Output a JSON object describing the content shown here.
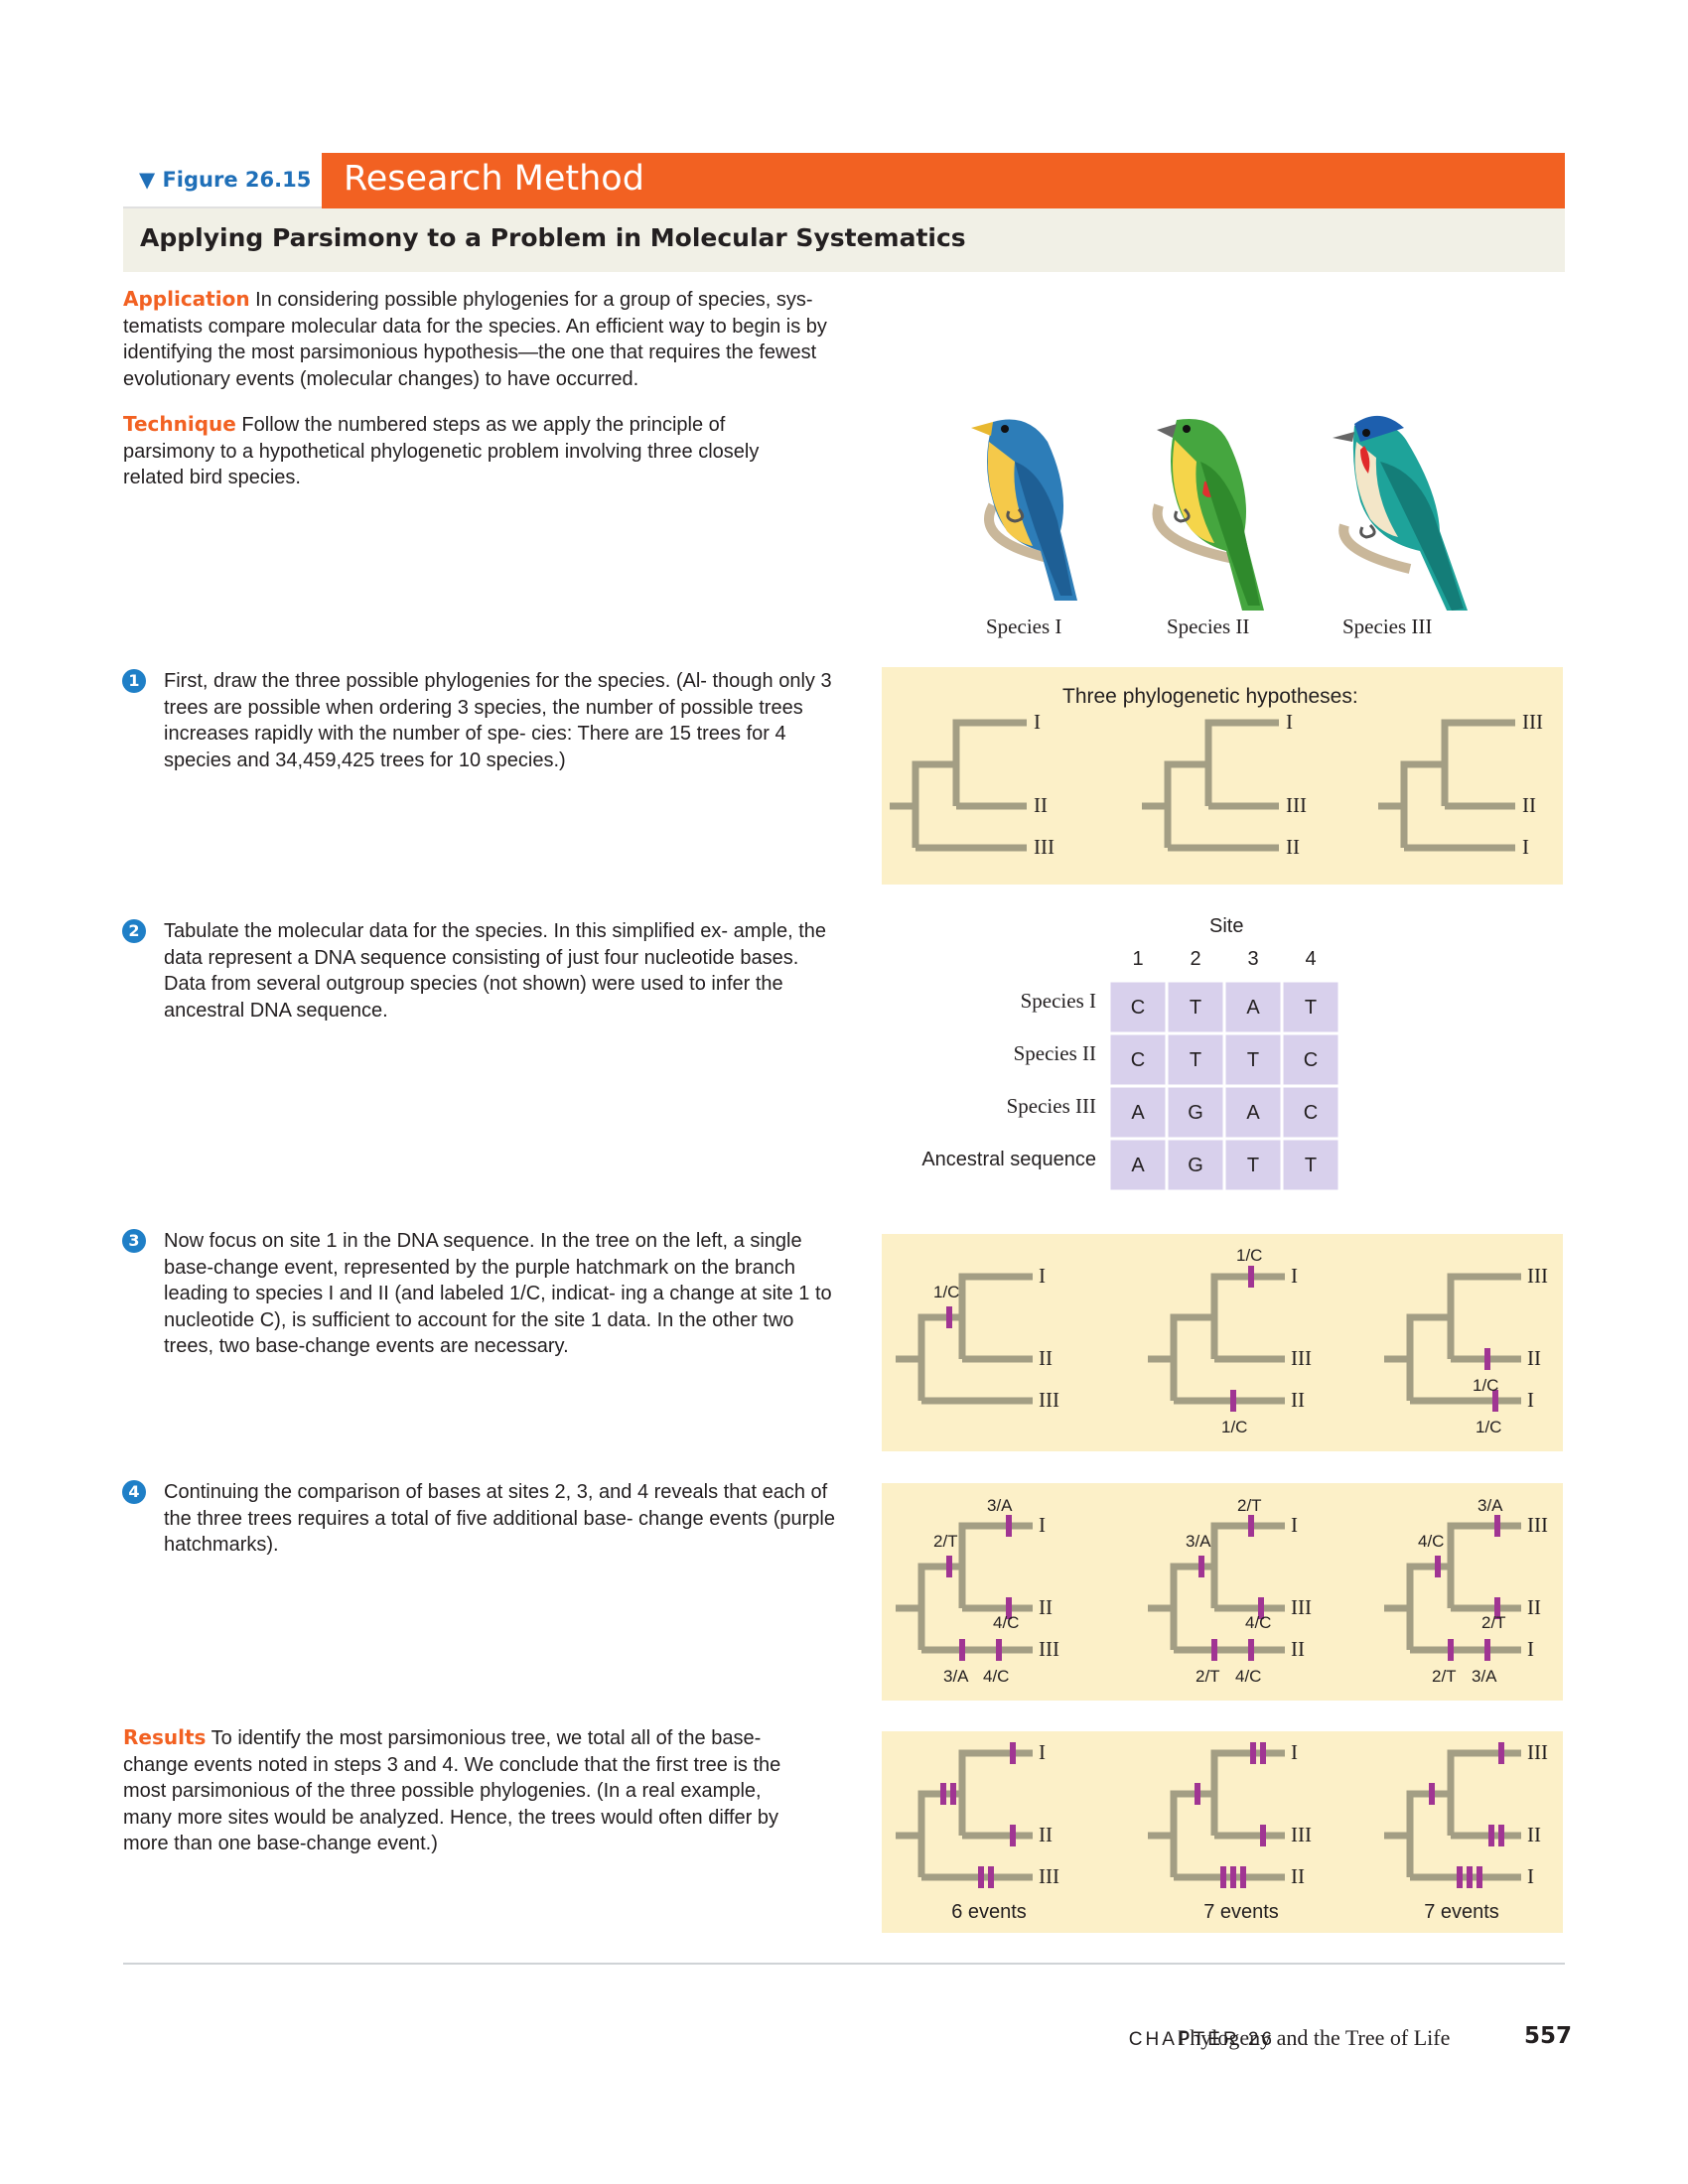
{
  "header": {
    "figure_label": "▼ Figure 26.15",
    "section_title": "Research Method",
    "subtitle": "Applying Parsimony to a Problem in Molecular Systematics"
  },
  "application": {
    "keyword": "Application",
    "text": "In considering possible phylogenies for a group of species, sys- tematists compare molecular data for the species. An efficient way to begin is by identifying the most parsimonious hypothesis—the one that requires the fewest evolutionary events (molecular changes) to have occurred."
  },
  "technique": {
    "keyword": "Technique",
    "text": "Follow the numbered steps as we apply the principle of parsimony to a hypothetical phylogenetic problem involving three closely related bird species."
  },
  "species_labels": [
    "Species I",
    "Species II",
    "Species III"
  ],
  "steps": [
    {
      "num": "1",
      "text": "First, draw the three possible phylogenies for the species. (Al- though only 3 trees are possible when ordering 3 species, the number of possible trees increases rapidly with the number of spe- cies: There are 15 trees for 4 species and 34,459,425 trees for 10 species.)"
    },
    {
      "num": "2",
      "text": "Tabulate the molecular data for the species. In this simplified ex- ample, the data represent a DNA sequence consisting of just four nucleotide bases. Data from several outgroup species (not shown) were used to infer the ancestral DNA sequence."
    },
    {
      "num": "3",
      "text": "Now focus on site 1 in the DNA sequence. In the tree on the left, a single base-change event, represented by the purple hatchmark on the branch leading to species I and II (and labeled 1/C, indicat- ing a change at site 1 to nucleotide C), is sufficient to account for the site 1 data. In the other two trees, two base-change events are necessary."
    },
    {
      "num": "4",
      "text": "Continuing the comparison of bases at sites 2, 3, and 4 reveals that each of the three trees requires a total of five additional base- change events (purple hatchmarks)."
    }
  ],
  "results": {
    "keyword": "Results",
    "text": "To identify the most parsimonious tree, we total all of the base-change events noted in steps 3 and 4. We conclude that the first tree is the most parsimonious of the three possible phylogenies. (In a real example, many more sites would be analyzed. Hence, the trees would often differ by more than one base-change event.)"
  },
  "panel1": {
    "title": "Three phylogenetic hypotheses:",
    "trees": [
      {
        "leaves": [
          "I",
          "II",
          "III"
        ]
      },
      {
        "leaves": [
          "I",
          "III",
          "II"
        ]
      },
      {
        "leaves": [
          "III",
          "II",
          "I"
        ]
      }
    ]
  },
  "table": {
    "site_label": "Site",
    "sites": [
      "1",
      "2",
      "3",
      "4"
    ],
    "rows": [
      {
        "name": "Species I",
        "bases": [
          "C",
          "T",
          "A",
          "T"
        ]
      },
      {
        "name": "Species II",
        "bases": [
          "C",
          "T",
          "T",
          "C"
        ]
      },
      {
        "name": "Species III",
        "bases": [
          "A",
          "G",
          "A",
          "C"
        ]
      },
      {
        "name": "Ancestral sequence",
        "bases": [
          "A",
          "G",
          "T",
          "T"
        ]
      }
    ]
  },
  "panel3": {
    "trees": [
      {
        "leaves": [
          "I",
          "II",
          "III"
        ],
        "labels": [
          "1/C"
        ]
      },
      {
        "leaves": [
          "I",
          "III",
          "II"
        ],
        "labels": [
          "1/C",
          "1/C"
        ]
      },
      {
        "leaves": [
          "III",
          "II",
          "I"
        ],
        "labels": [
          "1/C",
          "1/C"
        ]
      }
    ]
  },
  "panel4": {
    "trees": [
      {
        "leaves": [
          "I",
          "II",
          "III"
        ],
        "labels": [
          "3/A",
          "2/T",
          "4/C",
          "3/A",
          "4/C"
        ]
      },
      {
        "leaves": [
          "I",
          "III",
          "II"
        ],
        "labels": [
          "2/T",
          "3/A",
          "4/C",
          "2/T",
          "4/C"
        ]
      },
      {
        "leaves": [
          "III",
          "II",
          "I"
        ],
        "labels": [
          "3/A",
          "4/C",
          "2/T",
          "2/T",
          "3/A"
        ]
      }
    ]
  },
  "panel5": {
    "trees": [
      {
        "leaves": [
          "I",
          "II",
          "III"
        ],
        "total": "6 events"
      },
      {
        "leaves": [
          "I",
          "III",
          "II"
        ],
        "total": "7 events"
      },
      {
        "leaves": [
          "III",
          "II",
          "I"
        ],
        "total": "7 events"
      }
    ]
  },
  "footer": {
    "chapter": "CHAPTER 26",
    "title": "Phylogeny and the Tree of Life",
    "page": "557"
  },
  "colors": {
    "accent_orange": "#f26122",
    "figure_blue": "#1f6fb8",
    "panel_bg": "#fcf0c8",
    "table_cell": "#d8d0ec",
    "tree_branch": "#a39e84",
    "hatchmark": "#a03593"
  }
}
